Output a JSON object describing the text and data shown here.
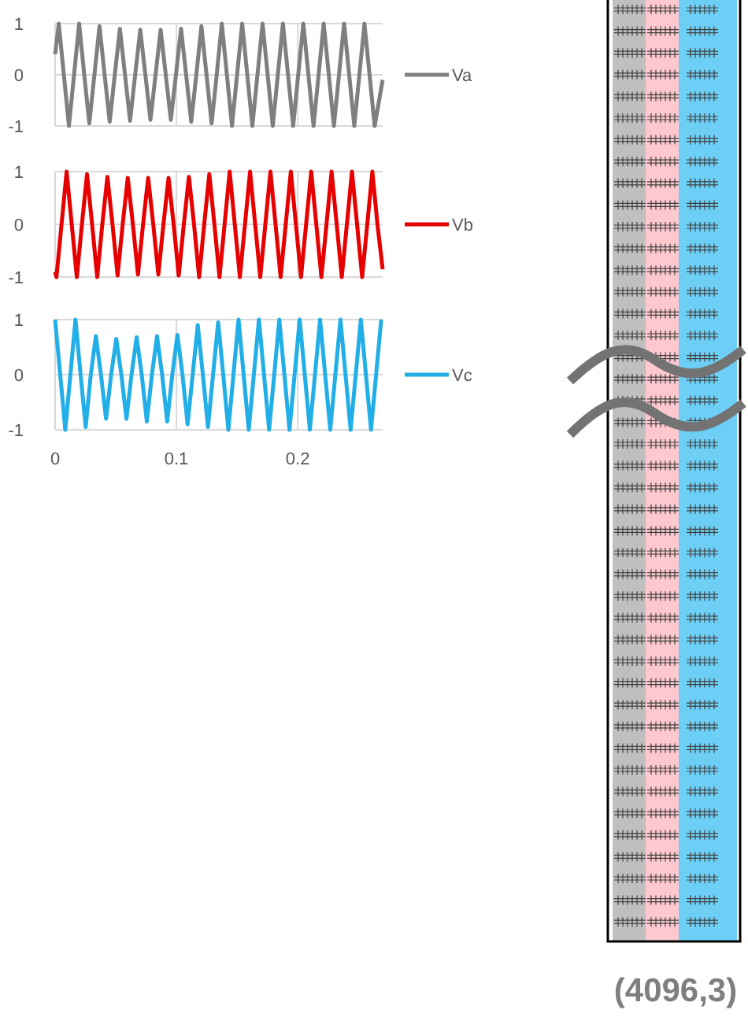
{
  "chart_data": [
    {
      "type": "line",
      "xlim": [
        0,
        0.27
      ],
      "ylim": [
        -1,
        1
      ],
      "xticks": [
        0,
        0.1,
        0.2
      ],
      "yticks": [
        -1,
        0,
        1
      ],
      "grid": true,
      "legend": "right",
      "tick_labels": "y",
      "marker": "none",
      "x": [
        0,
        0.003,
        0.0072,
        0.0114,
        0.0156,
        0.0198,
        0.024,
        0.0282,
        0.0324,
        0.0366,
        0.0408,
        0.045,
        0.0492,
        0.0534,
        0.0576,
        0.0618,
        0.066,
        0.0702,
        0.0744,
        0.0786,
        0.0828,
        0.087,
        0.0912,
        0.0954,
        0.0996,
        0.1038,
        0.108,
        0.1122,
        0.1164,
        0.1206,
        0.1248,
        0.129,
        0.1332,
        0.1374,
        0.1416,
        0.1458,
        0.15,
        0.1542,
        0.1584,
        0.1626,
        0.1668,
        0.171,
        0.1752,
        0.1794,
        0.1836,
        0.1878,
        0.192,
        0.1962,
        0.2004,
        0.2046,
        0.2088,
        0.213,
        0.2172,
        0.2214,
        0.2256,
        0.2298,
        0.234,
        0.2382,
        0.2424,
        0.2466,
        0.2508,
        0.255,
        0.2592,
        0.2634,
        0.27
      ],
      "series": [
        {
          "name": "Va",
          "color": "#7f7f7f",
          "values": [
            0.4,
            1,
            0,
            -1,
            0,
            1,
            0,
            -0.95,
            0,
            0.95,
            0,
            -0.92,
            0,
            0.9,
            0,
            -0.9,
            0,
            0.88,
            0,
            -0.88,
            0,
            0.88,
            0,
            -0.88,
            0,
            0.9,
            0,
            -0.92,
            0,
            0.95,
            0,
            -0.95,
            0,
            1,
            0,
            -1,
            0,
            1,
            0,
            -1,
            0,
            1,
            0,
            -1,
            0,
            1,
            0,
            -1,
            0,
            1,
            0,
            -1,
            0,
            1,
            0,
            -1,
            0,
            1,
            0,
            -1,
            0,
            1,
            0,
            -1,
            -0.1
          ]
        }
      ]
    },
    {
      "type": "line",
      "xlim": [
        0,
        0.27
      ],
      "ylim": [
        -1,
        1
      ],
      "xticks": [
        0,
        0.1,
        0.2
      ],
      "yticks": [
        -1,
        0,
        1
      ],
      "grid": true,
      "legend": "right",
      "tick_labels": "y",
      "marker": "none",
      "x": [
        0,
        0.0011,
        0.0053,
        0.0095,
        0.0137,
        0.0179,
        0.0221,
        0.0263,
        0.0305,
        0.0347,
        0.0389,
        0.0431,
        0.0473,
        0.0515,
        0.0557,
        0.0599,
        0.0641,
        0.0683,
        0.0725,
        0.0767,
        0.0809,
        0.0851,
        0.0893,
        0.0935,
        0.0977,
        0.1019,
        0.1061,
        0.1103,
        0.1145,
        0.1187,
        0.1229,
        0.1271,
        0.1313,
        0.1355,
        0.1397,
        0.1439,
        0.1481,
        0.1523,
        0.1565,
        0.1607,
        0.1649,
        0.1691,
        0.1733,
        0.1775,
        0.1817,
        0.1859,
        0.1901,
        0.1943,
        0.1985,
        0.2027,
        0.2069,
        0.2111,
        0.2153,
        0.2195,
        0.2237,
        0.2279,
        0.2321,
        0.2363,
        0.2405,
        0.2447,
        0.2489,
        0.2531,
        0.2573,
        0.2615,
        0.2657,
        0.27
      ],
      "series": [
        {
          "name": "Vb",
          "color": "#e60000",
          "values": [
            -0.9,
            -1,
            0,
            1,
            0,
            -1,
            0,
            0.95,
            0,
            -1,
            0,
            0.9,
            0,
            -0.97,
            0,
            0.88,
            0,
            -0.95,
            0,
            0.88,
            0,
            -0.95,
            0,
            0.88,
            0,
            -0.97,
            0,
            0.9,
            0,
            -1,
            0,
            0.95,
            0,
            -1,
            0,
            1,
            0,
            -1,
            0,
            1,
            0,
            -1,
            0,
            1,
            0,
            -1,
            0,
            1,
            0,
            -1,
            0,
            1,
            0,
            -1,
            0,
            1,
            0,
            -1,
            0,
            1,
            0,
            -1,
            0,
            1,
            0,
            -0.85
          ]
        }
      ]
    },
    {
      "type": "line",
      "xlim": [
        0,
        0.27
      ],
      "ylim": [
        -1,
        1
      ],
      "xticks": [
        0,
        0.1,
        0.2
      ],
      "yticks": [
        -1,
        0,
        1
      ],
      "grid": true,
      "legend": "right",
      "marker": "none",
      "x": [
        0,
        0.0042,
        0.0084,
        0.0126,
        0.0168,
        0.021,
        0.0252,
        0.0294,
        0.0336,
        0.0378,
        0.042,
        0.0462,
        0.0504,
        0.0546,
        0.0588,
        0.063,
        0.0672,
        0.0714,
        0.0756,
        0.0798,
        0.084,
        0.0882,
        0.0924,
        0.0966,
        0.1008,
        0.105,
        0.1092,
        0.1134,
        0.1176,
        0.1218,
        0.126,
        0.1302,
        0.1344,
        0.1386,
        0.1428,
        0.147,
        0.1512,
        0.1554,
        0.1596,
        0.1638,
        0.168,
        0.1722,
        0.1764,
        0.1806,
        0.1848,
        0.189,
        0.1932,
        0.1974,
        0.2016,
        0.2058,
        0.21,
        0.2142,
        0.2184,
        0.2226,
        0.2268,
        0.231,
        0.2352,
        0.2394,
        0.2436,
        0.2478,
        0.252,
        0.2562,
        0.2604,
        0.2646,
        0.2688
      ],
      "series": [
        {
          "name": "Vc",
          "color": "#22aee6",
          "values": [
            1,
            0,
            -1,
            0,
            1,
            0,
            -0.95,
            0,
            0.7,
            0,
            -0.8,
            0,
            0.65,
            0,
            -0.8,
            0,
            0.68,
            0,
            -0.85,
            0,
            0.7,
            0,
            -0.85,
            0,
            0.72,
            0,
            -0.9,
            0,
            0.9,
            0,
            -0.95,
            0,
            0.95,
            0,
            -1,
            0,
            1,
            0,
            -1,
            0,
            1,
            0,
            -1,
            0,
            1,
            0,
            -1,
            0,
            1,
            0,
            -1,
            0,
            1,
            0,
            -1,
            0,
            1,
            0,
            -1,
            0,
            1,
            0,
            -1,
            0,
            1
          ]
        }
      ]
    },
    {
      "type": "other",
      "annotations": [
        "(4096,3)"
      ]
    }
  ]
}
